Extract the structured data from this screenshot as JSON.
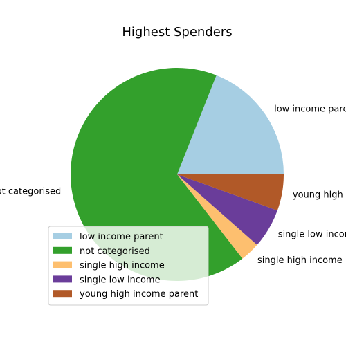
{
  "chart_data": {
    "type": "pie",
    "title": "Highest Spenders",
    "start_angle_deg": 0,
    "direction": "counterclockwise",
    "slices": [
      {
        "label": "low income parent",
        "value": 19.0,
        "color": "#a6cee3"
      },
      {
        "label": "not categorised",
        "value": 66.5,
        "color": "#33a02c"
      },
      {
        "label": "single high income",
        "value": 3.0,
        "color": "#fdbf6f"
      },
      {
        "label": "single low income",
        "value": 6.0,
        "color": "#6a3d9a"
      },
      {
        "label": "young high income parent",
        "value": 5.5,
        "color": "#b15928"
      }
    ],
    "legend": {
      "position": "lower-left"
    }
  }
}
